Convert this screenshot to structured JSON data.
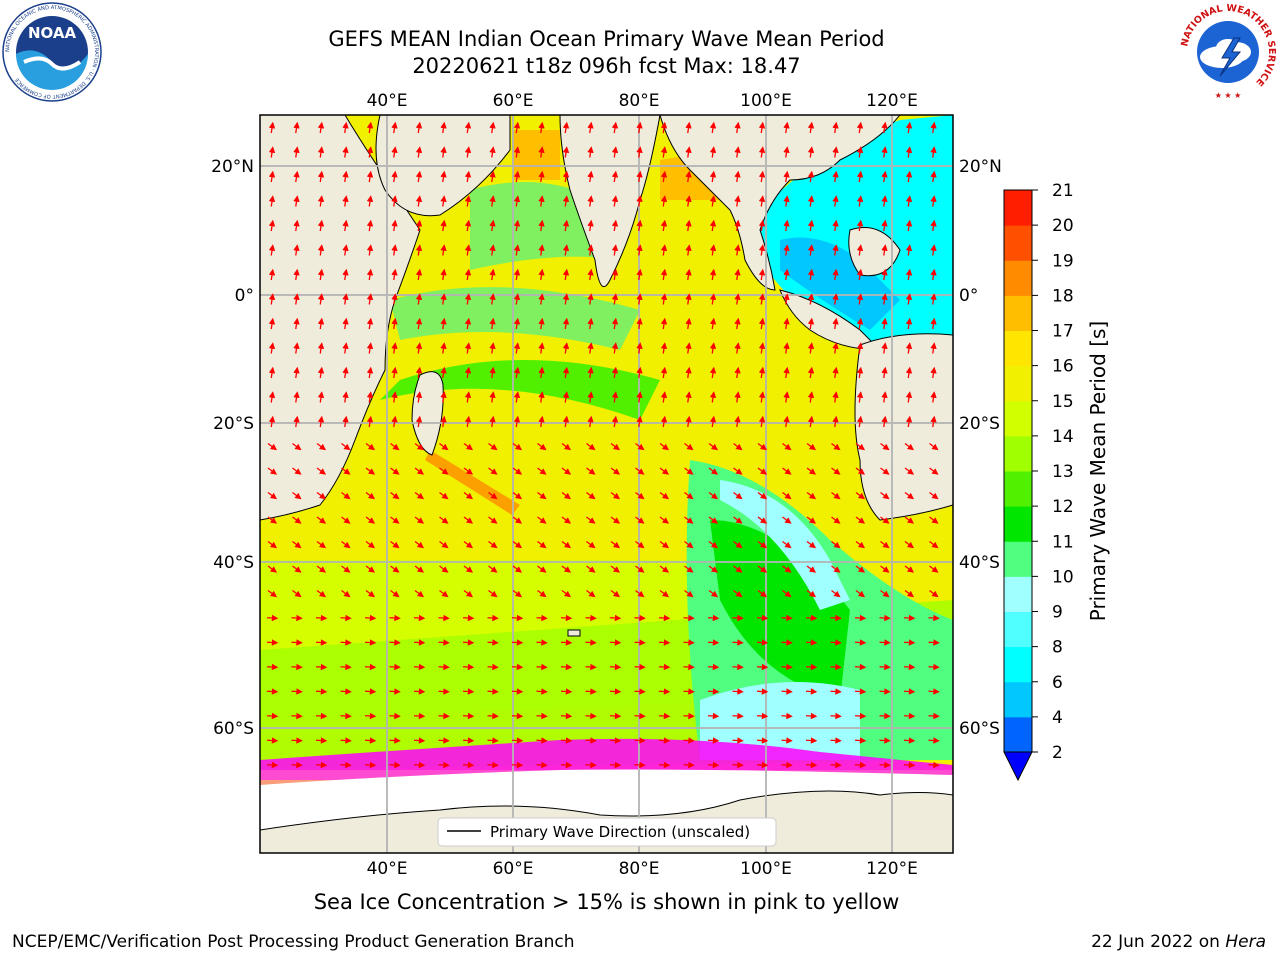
{
  "title": {
    "line1": "GEFS MEAN Indian Ocean Primary Wave Mean Period",
    "line2": "20220621 t18z 096h fcst   Max: 18.47"
  },
  "map": {
    "lon_labels": [
      "40°E",
      "60°E",
      "80°E",
      "100°E",
      "120°E"
    ],
    "lat_labels": [
      "20°N",
      "0°",
      "20°S",
      "40°S",
      "60°S"
    ],
    "legend_label": "Primary Wave Direction (unscaled)",
    "arrow_color": "#ff0000",
    "land_color": "#efecdc",
    "ice_color": "#ff00ff"
  },
  "colorbar": {
    "label": "Primary Wave Mean Period [s]",
    "ticks": [
      "2",
      "4",
      "6",
      "8",
      "9",
      "10",
      "11",
      "12",
      "13",
      "14",
      "15",
      "16",
      "17",
      "18",
      "19",
      "20",
      "21"
    ],
    "colors": [
      "#0064ff",
      "#00c8ff",
      "#00ffff",
      "#50ffff",
      "#a0ffff",
      "#50ff80",
      "#00e600",
      "#50f000",
      "#a0ff00",
      "#d2ff00",
      "#f0f000",
      "#ffe600",
      "#ffbe00",
      "#ff8c00",
      "#ff5000",
      "#ff1e00"
    ],
    "under_color": "#0000ff"
  },
  "caption": "Sea Ice Concentration > 15% is shown in pink to yellow",
  "footer": {
    "left": "NCEP/EMC/Verification Post Processing Product Generation Branch",
    "date": "22 Jun 2022 on ",
    "host": "Hera"
  },
  "logos": {
    "noaa_text": "NOAA",
    "noaa_ring": "NATIONAL OCEANIC AND ATMOSPHERIC ADMINISTRATION · U.S. DEPARTMENT OF COMMERCE",
    "nws_ring": "NATIONAL WEATHER SERVICE"
  }
}
